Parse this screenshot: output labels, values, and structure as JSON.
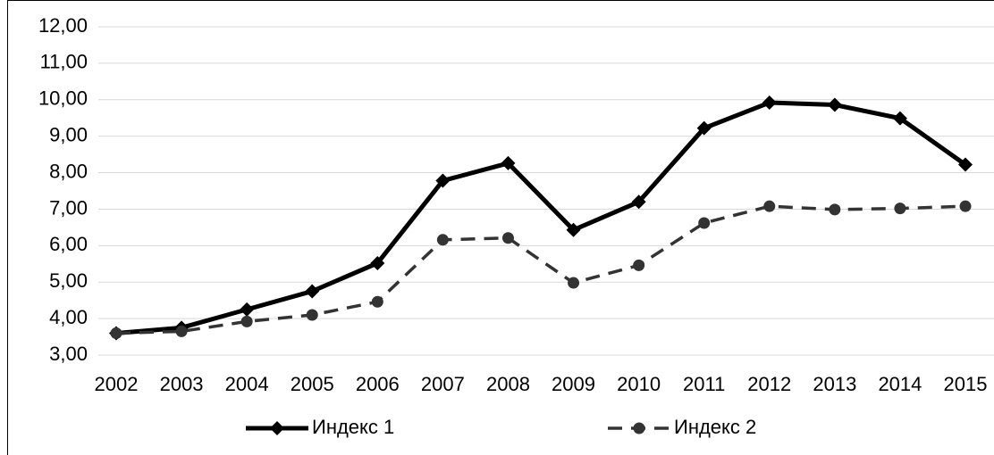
{
  "chart_data": {
    "type": "line",
    "categories": [
      "2002",
      "2003",
      "2004",
      "2005",
      "2006",
      "2007",
      "2008",
      "2009",
      "2010",
      "2011",
      "2012",
      "2013",
      "2014",
      "2015"
    ],
    "series": [
      {
        "name": "Индекс 1",
        "color": "#000000",
        "marker": "diamond",
        "dashed": false,
        "values": [
          3.6,
          3.75,
          4.25,
          4.75,
          5.52,
          7.78,
          8.26,
          6.43,
          7.2,
          9.22,
          9.92,
          9.86,
          9.49,
          8.22
        ]
      },
      {
        "name": "Индекс 2",
        "color": "#333333",
        "marker": "circle",
        "dashed": true,
        "values": [
          3.6,
          3.65,
          3.92,
          4.1,
          4.46,
          6.16,
          6.21,
          4.98,
          5.46,
          6.62,
          7.08,
          6.99,
          7.02,
          7.08
        ]
      }
    ],
    "ylim": [
      3,
      12
    ],
    "yticks": [
      {
        "value": 3,
        "label": "3,00"
      },
      {
        "value": 4,
        "label": "4,00"
      },
      {
        "value": 5,
        "label": "5,00"
      },
      {
        "value": 6,
        "label": "6,00"
      },
      {
        "value": 7,
        "label": "7,00"
      },
      {
        "value": 8,
        "label": "8,00"
      },
      {
        "value": 9,
        "label": "9,00"
      },
      {
        "value": 10,
        "label": "10,00"
      },
      {
        "value": 11,
        "label": "11,00"
      },
      {
        "value": 12,
        "label": "12,00"
      }
    ],
    "grid": true,
    "legend": "bottom"
  }
}
